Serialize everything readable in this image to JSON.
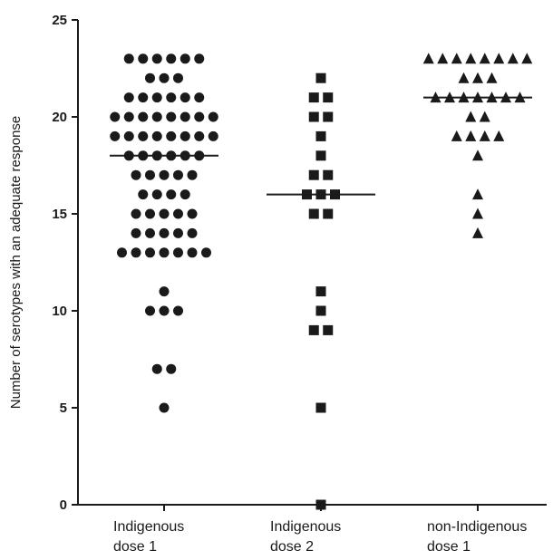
{
  "chart_data": {
    "type": "scatter",
    "ylabel": "Number of serotypes with an adequate response",
    "xlabel": "",
    "ylim": [
      0,
      25
    ],
    "yticks": [
      0,
      5,
      10,
      15,
      20,
      25
    ],
    "grid": false,
    "categories": [
      [
        "Indigenous",
        "dose 1"
      ],
      [
        "Indigenous",
        "dose 2"
      ],
      [
        "non-Indigenous",
        "dose 1"
      ]
    ],
    "series": [
      {
        "marker": "circle",
        "median": 18,
        "values": [
          23,
          23,
          23,
          23,
          23,
          23,
          22,
          22,
          22,
          21,
          21,
          21,
          21,
          21,
          21,
          20,
          20,
          20,
          20,
          20,
          20,
          20,
          20,
          19,
          19,
          19,
          19,
          19,
          19,
          19,
          19,
          18,
          18,
          18,
          18,
          18,
          18,
          17,
          17,
          17,
          17,
          17,
          16,
          16,
          16,
          16,
          15,
          15,
          15,
          15,
          15,
          14,
          14,
          14,
          14,
          14,
          13,
          13,
          13,
          13,
          13,
          13,
          13,
          11,
          10,
          10,
          10,
          7,
          7,
          5
        ]
      },
      {
        "marker": "square",
        "median": 16,
        "values": [
          22,
          21,
          21,
          20,
          20,
          19,
          18,
          17,
          17,
          16,
          16,
          16,
          15,
          15,
          11,
          10,
          9,
          9,
          5,
          0
        ]
      },
      {
        "marker": "triangle",
        "median": 21,
        "values": [
          23,
          23,
          23,
          23,
          23,
          23,
          23,
          23,
          22,
          22,
          22,
          21,
          21,
          21,
          21,
          21,
          21,
          21,
          20,
          20,
          19,
          19,
          19,
          19,
          18,
          16,
          15,
          14
        ]
      }
    ]
  }
}
